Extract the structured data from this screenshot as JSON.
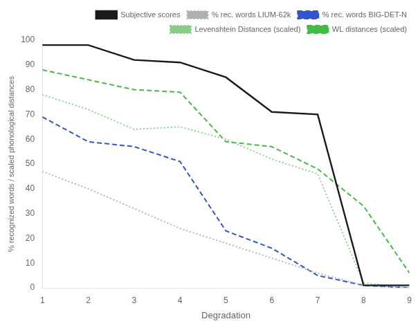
{
  "chart_data": {
    "type": "line",
    "x": [
      1,
      2,
      3,
      4,
      5,
      6,
      7,
      8,
      9
    ],
    "series": [
      {
        "name": "Subjective scores",
        "color": "#1a1a1a",
        "line_style": "solid",
        "values": [
          98,
          98,
          92,
          91,
          85,
          71,
          70,
          1,
          1
        ]
      },
      {
        "name": "% rec. words LIUM-62k",
        "color": "#b0b0b0",
        "line_style": "dotted",
        "values": [
          47,
          40,
          32,
          24,
          18,
          12,
          6,
          1,
          0
        ]
      },
      {
        "name": "% rec. words BIG-DET-N",
        "color": "#3355cc",
        "line_style": "dashed",
        "values": [
          69,
          59,
          57,
          51,
          23,
          16,
          5,
          1,
          0
        ]
      },
      {
        "name": "Levenshtein Distances (scaled)",
        "color": "#88cc88",
        "line_style": "dotted",
        "values": [
          78,
          72,
          64,
          65,
          60,
          52,
          46,
          2,
          0
        ]
      },
      {
        "name": "WL distances (scaled)",
        "color": "#44bb44",
        "line_style": "dashed",
        "values": [
          88,
          84,
          80,
          79,
          59,
          57,
          48,
          33,
          6
        ]
      }
    ],
    "xlabel": "Degradation",
    "ylabel": "% recognized words / scaled phonological distances",
    "xlim": [
      1,
      9
    ],
    "ylim": [
      0,
      100
    ],
    "xticks": [
      1,
      2,
      3,
      4,
      5,
      6,
      7,
      8,
      9
    ],
    "yticks": [
      0,
      10,
      20,
      30,
      40,
      50,
      60,
      70,
      80,
      90,
      100
    ],
    "grid": false,
    "legend": "upper right"
  }
}
